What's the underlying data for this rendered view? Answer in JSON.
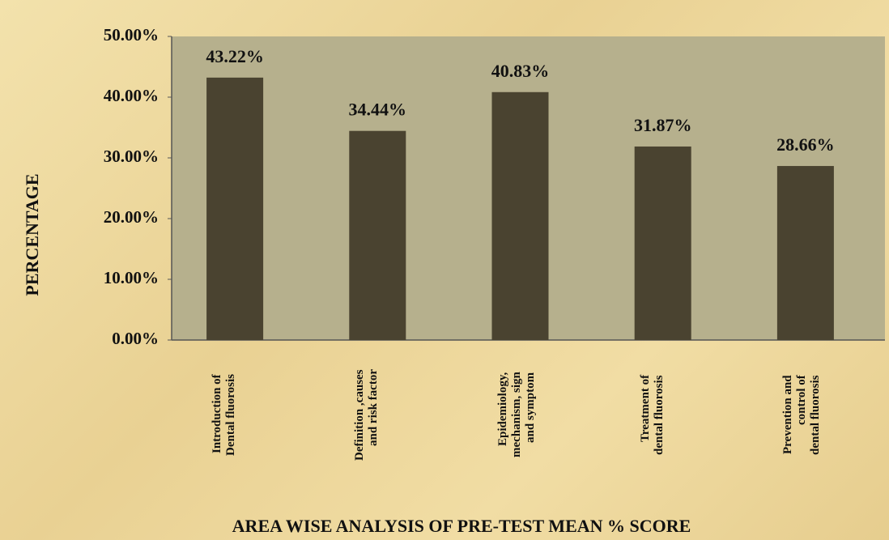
{
  "chart_data": {
    "type": "bar",
    "title": "AREA WISE  ANALYSIS OF PRE-TEST MEAN % SCORE",
    "y_label": "PERCENTAGE",
    "categories": [
      "Introduction of\nDental fluorosis",
      "Definition ,causes\nand risk factor",
      "Epidemiology,\nmechanism, sign\nand symptom",
      "Treatment of\ndental fluorosis",
      "Prevention and\ncontrol of\ndental fluorosis"
    ],
    "values": [
      43.22,
      34.44,
      40.83,
      31.87,
      28.66
    ],
    "value_labels": [
      "43.22%",
      "34.44%",
      "40.83%",
      "31.87%",
      "28.66%"
    ],
    "color": "#4a4330",
    "ylim": [
      0,
      50
    ],
    "yticks": [
      {
        "value": 0,
        "label": "0.00%"
      },
      {
        "value": 10,
        "label": "10.00%"
      },
      {
        "value": 20,
        "label": "20.00%"
      },
      {
        "value": 30,
        "label": "30.00%"
      },
      {
        "value": 40,
        "label": "40.00%"
      },
      {
        "value": 50,
        "label": "50.00%"
      }
    ],
    "grid": false
  }
}
